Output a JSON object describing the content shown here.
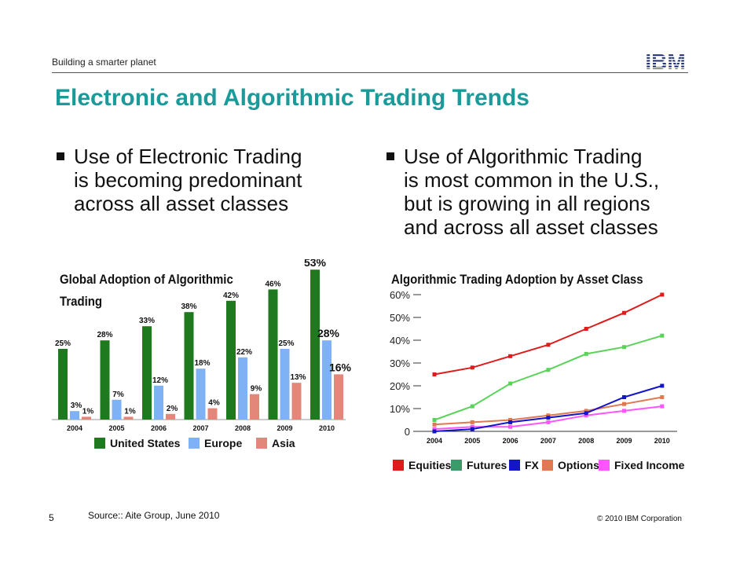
{
  "header": {
    "tagline": "Building a smarter planet",
    "logo": "IBM"
  },
  "title": "Electronic and Algorithmic Trading Trends",
  "bullets": {
    "left": "Use of Electronic Trading\nis becoming predominant\nacross all asset classes",
    "right": "Use of Algorithmic Trading\nis most common in the U.S.,\nbut is growing in all regions\nand across all asset classes"
  },
  "colors": {
    "title": "#1a9a99",
    "us": "#1f7a1f",
    "europe": "#7fb1f5",
    "asia": "#e3877a",
    "equities": "#dd1c1c",
    "futures": "#5bd35b",
    "fx": "#1414c8",
    "options": "#e07850",
    "fixed_income": "#ff55ff"
  },
  "chart_data": [
    {
      "type": "bar",
      "title": "Global Adoption of Algorithmic\nTrading",
      "categories": [
        "2004",
        "2005",
        "2006",
        "2007",
        "2008",
        "2009",
        "2010"
      ],
      "series": [
        {
          "name": "United States",
          "values": [
            25,
            28,
            33,
            38,
            42,
            46,
            53
          ],
          "labels": [
            "25%",
            "28%",
            "33%",
            "38%",
            "42%",
            "46%",
            "53%"
          ]
        },
        {
          "name": "Europe",
          "values": [
            3,
            7,
            12,
            18,
            22,
            25,
            28
          ],
          "labels": [
            "3%",
            "7%",
            "12%",
            "18%",
            "22%",
            "25%",
            "28%"
          ]
        },
        {
          "name": "Asia",
          "values": [
            1,
            1,
            2,
            4,
            9,
            13,
            16
          ],
          "labels": [
            "1%",
            "1%",
            "2%",
            "4%",
            "9%",
            "13%",
            "16%"
          ]
        }
      ],
      "ylim": [
        0,
        55
      ],
      "legend": "bottom"
    },
    {
      "type": "line",
      "title": "Algorithmic Trading Adoption by Asset Class",
      "x": [
        "2004",
        "2005",
        "2006",
        "2007",
        "2008",
        "2009",
        "2010"
      ],
      "yticks": [
        "0",
        "10%",
        "20%",
        "30%",
        "40%",
        "50%",
        "60%"
      ],
      "ylim": [
        0,
        60
      ],
      "series": [
        {
          "name": "Equities",
          "values": [
            25,
            28,
            33,
            38,
            45,
            52,
            60
          ]
        },
        {
          "name": "Futures",
          "values": [
            5,
            11,
            21,
            27,
            34,
            37,
            42
          ]
        },
        {
          "name": "FX",
          "values": [
            0,
            1,
            4,
            6,
            8,
            15,
            20
          ]
        },
        {
          "name": "Options",
          "values": [
            3,
            4,
            5,
            7,
            9,
            12,
            15
          ]
        },
        {
          "name": "Fixed Income",
          "values": [
            1,
            2,
            2,
            4,
            7,
            9,
            11
          ]
        }
      ],
      "legend": "bottom"
    }
  ],
  "footer": {
    "page": "5",
    "source": "Source:: Aite Group, June 2010",
    "copyright": "© 2010 IBM Corporation"
  }
}
